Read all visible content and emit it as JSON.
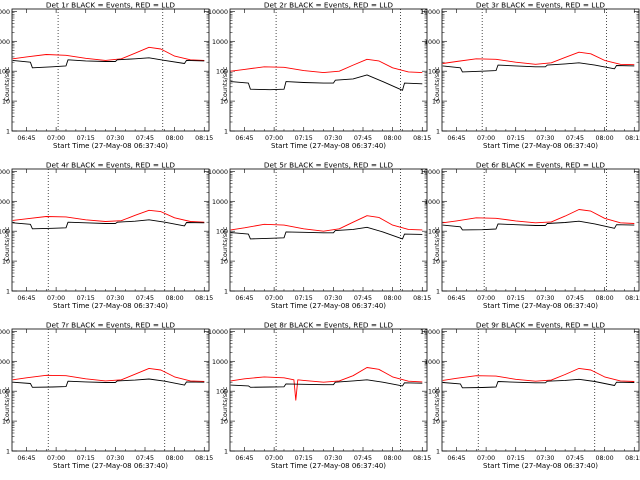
{
  "chart_data": [
    {
      "type": "line",
      "title": "Det 1r BLACK = Events, RED = LLD",
      "xlabel": "Start Time (27-May-08 06:37:40)",
      "ylabel": "Counts/sec",
      "y_scale": "log",
      "ylim": [
        1,
        12000
      ],
      "xlim": [
        6.6278,
        8.29
      ],
      "y_ticks": [
        "1",
        "10",
        "100",
        "1000",
        "10000"
      ],
      "x_ticks": [
        "06:45",
        "07:00",
        "07:15",
        "07:30",
        "07:45",
        "08:00",
        "08:15"
      ],
      "vlines": [
        "07:01",
        "07:54"
      ],
      "series": [
        {
          "color": "#ff0000",
          "x": [
            "06:38",
            "06:45",
            "06:55",
            "07:05",
            "07:15",
            "07:25",
            "07:33",
            "07:40",
            "07:47",
            "07:53",
            "08:00",
            "08:08",
            "08:15"
          ],
          "values": [
            260,
            300,
            360,
            340,
            270,
            230,
            260,
            400,
            630,
            550,
            320,
            240,
            230
          ]
        },
        {
          "color": "#000000",
          "x": [
            "06:38",
            "06:47",
            "06:48",
            "06:58",
            "07:05",
            "07:06",
            "07:15",
            "07:25",
            "07:30",
            "07:31",
            "07:40",
            "07:47",
            "07:55",
            "08:05",
            "08:06",
            "08:15"
          ],
          "values": [
            230,
            200,
            130,
            140,
            150,
            240,
            220,
            210,
            210,
            240,
            260,
            280,
            230,
            180,
            230,
            220
          ]
        }
      ]
    },
    {
      "type": "line",
      "title": "Det 2r BLACK = Events, RED = LLD",
      "xlabel": "Start Time (27-May-08 06:37:40)",
      "ylabel": "Counts/sec",
      "y_scale": "log",
      "ylim": [
        1,
        12000
      ],
      "xlim": [
        6.6278,
        8.29
      ],
      "y_ticks": [
        "1",
        "10",
        "100",
        "1000",
        "10000"
      ],
      "x_ticks": [
        "06:45",
        "07:00",
        "07:15",
        "07:30",
        "07:45",
        "08:00",
        "08:15"
      ],
      "vlines": [
        "07:01",
        "08:04"
      ],
      "series": [
        {
          "color": "#ff0000",
          "x": [
            "06:38",
            "06:45",
            "06:55",
            "07:05",
            "07:15",
            "07:25",
            "07:33",
            "07:40",
            "07:47",
            "07:53",
            "08:00",
            "08:08",
            "08:15"
          ],
          "values": [
            100,
            115,
            140,
            135,
            105,
            90,
            100,
            160,
            250,
            220,
            130,
            95,
            90
          ]
        },
        {
          "color": "#000000",
          "x": [
            "06:38",
            "06:47",
            "06:48",
            "06:58",
            "07:05",
            "07:06",
            "07:15",
            "07:25",
            "07:30",
            "07:31",
            "07:40",
            "07:47",
            "07:55",
            "08:05",
            "08:06",
            "08:15"
          ],
          "values": [
            45,
            40,
            25,
            24,
            25,
            45,
            42,
            40,
            40,
            50,
            55,
            75,
            45,
            23,
            40,
            38
          ]
        }
      ]
    },
    {
      "type": "line",
      "title": "Det 3r BLACK = Events, RED = LLD",
      "xlabel": "Start Time (27-May-08 06:37:40)",
      "ylabel": "Counts/sec",
      "y_scale": "log",
      "ylim": [
        1,
        12000
      ],
      "xlim": [
        6.6278,
        8.29
      ],
      "y_ticks": [
        "1",
        "10",
        "100",
        "1000",
        "10000"
      ],
      "x_ticks": [
        "06:45",
        "07:00",
        "07:15",
        "07:30",
        "07:45",
        "08:00",
        "08:15"
      ],
      "vlines": [
        "06:58",
        "08:01"
      ],
      "series": [
        {
          "color": "#ff0000",
          "x": [
            "06:38",
            "06:45",
            "06:55",
            "07:05",
            "07:15",
            "07:25",
            "07:33",
            "07:40",
            "07:47",
            "07:53",
            "08:00",
            "08:08",
            "08:15"
          ],
          "values": [
            180,
            210,
            260,
            250,
            200,
            170,
            190,
            290,
            430,
            380,
            230,
            170,
            165
          ]
        },
        {
          "color": "#000000",
          "x": [
            "06:38",
            "06:47",
            "06:48",
            "06:58",
            "07:05",
            "07:06",
            "07:15",
            "07:25",
            "07:30",
            "07:31",
            "07:40",
            "07:47",
            "07:55",
            "08:05",
            "08:06",
            "08:15"
          ],
          "values": [
            150,
            130,
            95,
            100,
            105,
            160,
            150,
            140,
            140,
            160,
            175,
            190,
            160,
            120,
            155,
            150
          ]
        }
      ]
    },
    {
      "type": "line",
      "title": "Det 4r BLACK = Events, RED = LLD",
      "xlabel": "Start Time (27-May-08 06:37:40)",
      "ylabel": "Counts/sec",
      "y_scale": "log",
      "ylim": [
        1,
        12000
      ],
      "xlim": [
        6.6278,
        8.29
      ],
      "y_ticks": [
        "1",
        "10",
        "100",
        "1000",
        "10000"
      ],
      "x_ticks": [
        "06:45",
        "07:00",
        "07:15",
        "07:30",
        "07:45",
        "08:00",
        "08:15"
      ],
      "vlines": [
        "06:56",
        "07:55"
      ],
      "series": [
        {
          "color": "#ff0000",
          "x": [
            "06:38",
            "06:45",
            "06:55",
            "07:05",
            "07:15",
            "07:25",
            "07:33",
            "07:40",
            "07:47",
            "07:53",
            "08:00",
            "08:08",
            "08:15"
          ],
          "values": [
            230,
            260,
            310,
            300,
            240,
            210,
            225,
            340,
            500,
            450,
            280,
            210,
            200
          ]
        },
        {
          "color": "#000000",
          "x": [
            "06:38",
            "06:47",
            "06:48",
            "06:58",
            "07:05",
            "07:06",
            "07:15",
            "07:25",
            "07:30",
            "07:31",
            "07:40",
            "07:47",
            "07:55",
            "08:05",
            "08:06",
            "08:15"
          ],
          "values": [
            190,
            170,
            120,
            125,
            130,
            200,
            190,
            180,
            180,
            200,
            215,
            240,
            200,
            150,
            195,
            190
          ]
        }
      ]
    },
    {
      "type": "line",
      "title": "Det 5r BLACK = Events, RED = LLD",
      "xlabel": "Start Time (27-May-08 06:37:40)",
      "ylabel": "Counts/sec",
      "y_scale": "log",
      "ylim": [
        1,
        12000
      ],
      "xlim": [
        6.6278,
        8.29
      ],
      "y_ticks": [
        "1",
        "10",
        "100",
        "1000",
        "10000"
      ],
      "x_ticks": [
        "06:45",
        "07:00",
        "07:15",
        "07:30",
        "07:45",
        "08:00",
        "08:15"
      ],
      "vlines": [
        "07:01",
        "08:04"
      ],
      "series": [
        {
          "color": "#ff0000",
          "x": [
            "06:38",
            "06:45",
            "06:55",
            "07:05",
            "07:15",
            "07:25",
            "07:33",
            "07:40",
            "07:47",
            "07:53",
            "08:00",
            "08:08",
            "08:15"
          ],
          "values": [
            110,
            130,
            170,
            160,
            120,
            100,
            120,
            200,
            330,
            290,
            160,
            115,
            110
          ]
        },
        {
          "color": "#000000",
          "x": [
            "06:38",
            "06:47",
            "06:48",
            "06:58",
            "07:05",
            "07:06",
            "07:15",
            "07:25",
            "07:30",
            "07:31",
            "07:40",
            "07:47",
            "07:55",
            "08:05",
            "08:06",
            "08:15"
          ],
          "values": [
            90,
            80,
            55,
            58,
            60,
            95,
            92,
            88,
            88,
            105,
            115,
            135,
            95,
            55,
            80,
            78
          ]
        }
      ]
    },
    {
      "type": "line",
      "title": "Det 6r BLACK = Events, RED = LLD",
      "xlabel": "Start Time (27-May-08 06:37:40)",
      "ylabel": "Counts/sec",
      "y_scale": "log",
      "ylim": [
        1,
        12000
      ],
      "xlim": [
        6.6278,
        8.29
      ],
      "y_ticks": [
        "1",
        "10",
        "100",
        "1000",
        "10000"
      ],
      "x_ticks": [
        "06:45",
        "07:00",
        "07:15",
        "07:30",
        "07:45",
        "08:00",
        "08:15"
      ],
      "vlines": [
        "06:59",
        "08:01"
      ],
      "series": [
        {
          "color": "#ff0000",
          "x": [
            "06:38",
            "06:45",
            "06:55",
            "07:05",
            "07:15",
            "07:25",
            "07:33",
            "07:40",
            "07:47",
            "07:53",
            "08:00",
            "08:08",
            "08:15"
          ],
          "values": [
            190,
            220,
            280,
            270,
            220,
            190,
            205,
            320,
            530,
            470,
            270,
            190,
            180
          ]
        },
        {
          "color": "#000000",
          "x": [
            "06:38",
            "06:47",
            "06:48",
            "06:58",
            "07:05",
            "07:06",
            "07:15",
            "07:25",
            "07:30",
            "07:31",
            "07:40",
            "07:47",
            "07:55",
            "08:05",
            "08:06",
            "08:15"
          ],
          "values": [
            160,
            140,
            110,
            112,
            118,
            175,
            165,
            155,
            155,
            180,
            195,
            215,
            175,
            125,
            165,
            160
          ]
        }
      ]
    },
    {
      "type": "line",
      "title": "Det 7r BLACK = Events, RED = LLD",
      "xlabel": "Start Time (27-May-08 06:37:40)",
      "ylabel": "Counts/sec",
      "y_scale": "log",
      "ylim": [
        1,
        12000
      ],
      "xlim": [
        6.6278,
        8.29
      ],
      "y_ticks": [
        "1",
        "10",
        "100",
        "1000",
        "10000"
      ],
      "x_ticks": [
        "06:45",
        "07:00",
        "07:15",
        "07:30",
        "07:45",
        "08:00",
        "08:15"
      ],
      "vlines": [
        "06:56",
        "07:55"
      ],
      "series": [
        {
          "color": "#ff0000",
          "x": [
            "06:38",
            "06:45",
            "06:55",
            "07:05",
            "07:15",
            "07:25",
            "07:33",
            "07:40",
            "07:47",
            "07:53",
            "08:00",
            "08:08",
            "08:15"
          ],
          "values": [
            240,
            280,
            340,
            330,
            260,
            220,
            240,
            370,
            580,
            510,
            300,
            220,
            210
          ]
        },
        {
          "color": "#000000",
          "x": [
            "06:38",
            "06:47",
            "06:48",
            "06:58",
            "07:05",
            "07:06",
            "07:15",
            "07:25",
            "07:30",
            "07:31",
            "07:40",
            "07:47",
            "07:55",
            "08:05",
            "08:06",
            "08:15"
          ],
          "values": [
            200,
            180,
            135,
            138,
            142,
            215,
            205,
            195,
            195,
            220,
            235,
            255,
            215,
            160,
            205,
            200
          ]
        }
      ]
    },
    {
      "type": "line",
      "title": "Det 8r BLACK = Events, RED = LLD",
      "xlabel": "Start Time (27-May-08 06:37:40)",
      "ylabel": "Counts/sec",
      "y_scale": "log",
      "ylim": [
        1,
        12000
      ],
      "xlim": [
        6.6278,
        8.29
      ],
      "y_ticks": [
        "1",
        "10",
        "100",
        "1000",
        "10000"
      ],
      "x_ticks": [
        "06:45",
        "07:00",
        "07:15",
        "07:30",
        "07:45",
        "08:00",
        "08:15"
      ],
      "vlines": [
        "07:01",
        "08:04"
      ],
      "series": [
        {
          "color": "#ff0000",
          "x": [
            "06:38",
            "06:45",
            "06:55",
            "07:05",
            "07:10",
            "07:11",
            "07:12",
            "07:15",
            "07:25",
            "07:33",
            "07:40",
            "07:47",
            "07:53",
            "08:00",
            "08:08",
            "08:15"
          ],
          "values": [
            220,
            260,
            300,
            280,
            240,
            50,
            240,
            230,
            200,
            220,
            330,
            620,
            540,
            300,
            215,
            205
          ]
        },
        {
          "color": "#000000",
          "x": [
            "06:38",
            "06:47",
            "06:48",
            "06:58",
            "07:05",
            "07:06",
            "07:15",
            "07:25",
            "07:30",
            "07:31",
            "07:40",
            "07:47",
            "07:55",
            "08:05",
            "08:06",
            "08:15"
          ],
          "values": [
            160,
            150,
            135,
            138,
            140,
            175,
            170,
            165,
            165,
            200,
            220,
            240,
            200,
            150,
            190,
            185
          ]
        }
      ]
    },
    {
      "type": "line",
      "title": "Det 9r BLACK = Events, RED = LLD",
      "xlabel": "Start Time (27-May-08 06:37:40)",
      "ylabel": "Counts/sec",
      "y_scale": "log",
      "ylim": [
        1,
        12000
      ],
      "xlim": [
        6.6278,
        8.29
      ],
      "y_ticks": [
        "1",
        "10",
        "100",
        "1000",
        "10000"
      ],
      "x_ticks": [
        "06:45",
        "07:00",
        "07:15",
        "07:30",
        "07:45",
        "08:00",
        "08:15"
      ],
      "vlines": [
        "06:56",
        "07:55"
      ],
      "series": [
        {
          "color": "#ff0000",
          "x": [
            "06:38",
            "06:45",
            "06:55",
            "07:05",
            "07:15",
            "07:25",
            "07:33",
            "07:40",
            "07:47",
            "07:53",
            "08:00",
            "08:08",
            "08:15"
          ],
          "values": [
            230,
            270,
            330,
            320,
            250,
            215,
            235,
            360,
            580,
            510,
            300,
            220,
            210
          ]
        },
        {
          "color": "#000000",
          "x": [
            "06:38",
            "06:47",
            "06:48",
            "06:58",
            "07:05",
            "07:06",
            "07:15",
            "07:25",
            "07:30",
            "07:31",
            "07:40",
            "07:47",
            "07:55",
            "08:05",
            "08:06",
            "08:15"
          ],
          "values": [
            195,
            175,
            130,
            133,
            138,
            210,
            200,
            190,
            190,
            215,
            230,
            250,
            210,
            155,
            200,
            195
          ]
        }
      ]
    }
  ]
}
